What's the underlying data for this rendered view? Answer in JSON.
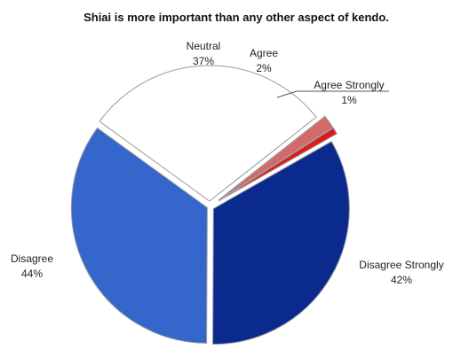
{
  "chart_data": {
    "type": "pie",
    "title": "Shiai is more important than any other aspect of kendo.",
    "slices": [
      {
        "label": "Neutral",
        "value": 37,
        "value_label": "37%",
        "color": "#ffffff"
      },
      {
        "label": "Agree",
        "value": 2,
        "value_label": "2%",
        "color": "#d36a6a"
      },
      {
        "label": "Agree Strongly",
        "value": 1,
        "value_label": "1%",
        "color": "#e01a1a"
      },
      {
        "label": "Disagree Strongly",
        "value": 42,
        "value_label": "42%",
        "color": "#0a2a8e"
      },
      {
        "label": "Disagree",
        "value": 44,
        "value_label": "44%",
        "color": "#3566cc"
      }
    ],
    "exploded": true,
    "legend": "none"
  }
}
